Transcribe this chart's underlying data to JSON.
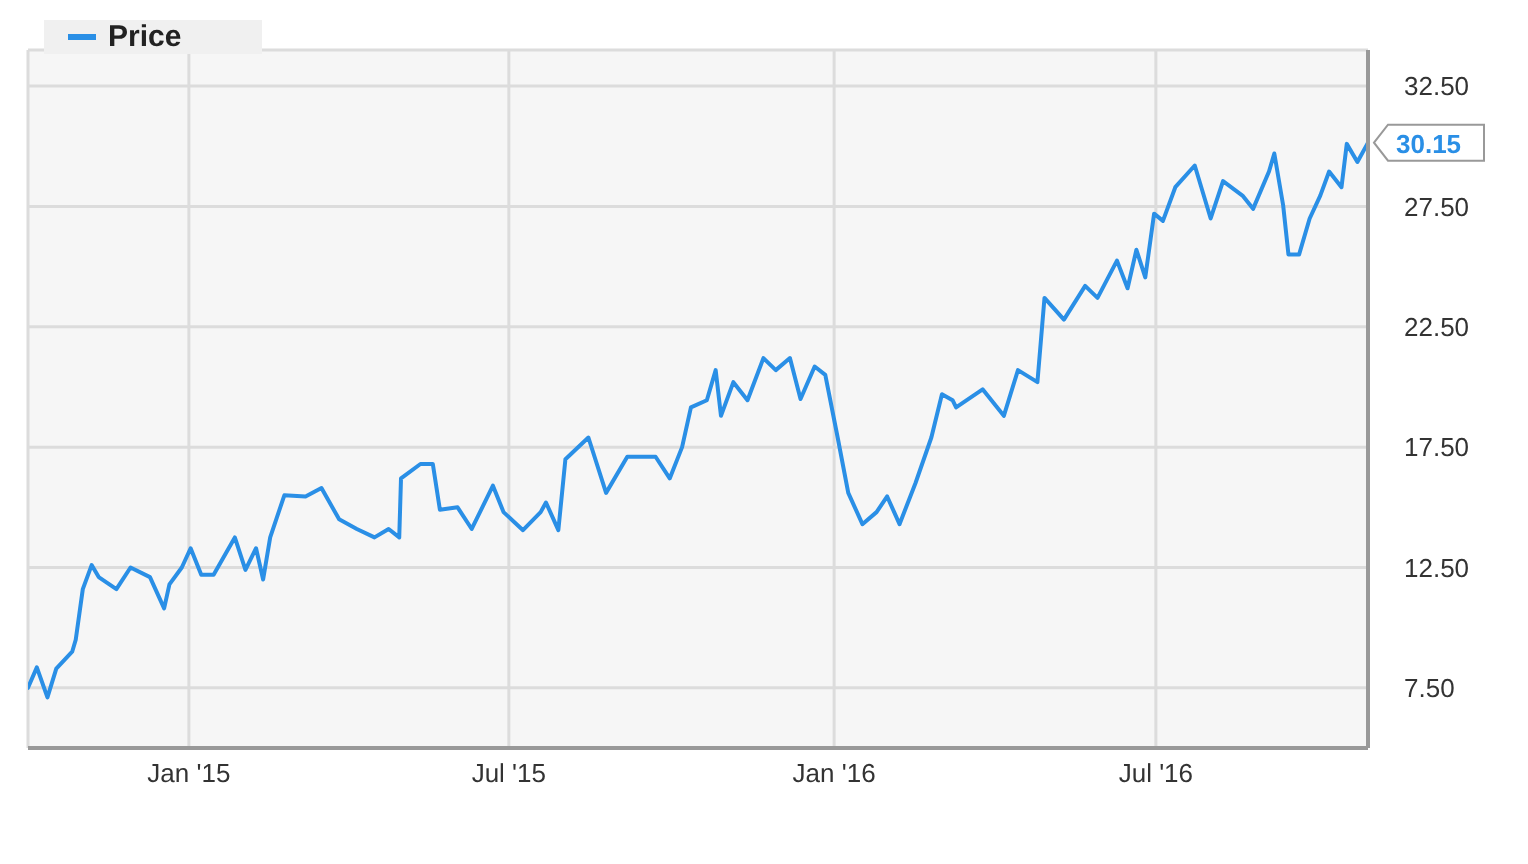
{
  "chart_data": {
    "type": "line",
    "xlim": [
      "2014-10-02",
      "2016-10-29"
    ],
    "xticks": [
      {
        "value": "2015-01-01",
        "label": "Jan '15"
      },
      {
        "value": "2015-07-01",
        "label": "Jul '15"
      },
      {
        "value": "2016-01-01",
        "label": "Jan '16"
      },
      {
        "value": "2016-07-01",
        "label": "Jul '16"
      }
    ],
    "ylim": [
      5,
      34
    ],
    "yticks": [
      {
        "value": 7.5,
        "label": "7.50"
      },
      {
        "value": 12.5,
        "label": "12.50"
      },
      {
        "value": 17.5,
        "label": "17.50"
      },
      {
        "value": 22.5,
        "label": "22.50"
      },
      {
        "value": 27.5,
        "label": "27.50"
      },
      {
        "value": 32.5,
        "label": "32.50"
      }
    ],
    "grid": true,
    "legend": "top left",
    "marker": "none",
    "line_style": "solid",
    "series": [
      {
        "name": "Price",
        "color": "#2a8fe6",
        "x": [
          "2014-10-02",
          "2014-10-07",
          "2014-10-13",
          "2014-10-18",
          "2014-10-27",
          "2014-10-29",
          "2014-11-02",
          "2014-11-07",
          "2014-11-11",
          "2014-11-21",
          "2014-11-29",
          "2014-12-10",
          "2014-12-18",
          "2014-12-21",
          "2014-12-28",
          "2015-01-02",
          "2015-01-08",
          "2015-01-15",
          "2015-01-27",
          "2015-02-02",
          "2015-02-08",
          "2015-02-12",
          "2015-02-16",
          "2015-02-24",
          "2015-03-08",
          "2015-03-17",
          "2015-03-27",
          "2015-04-06",
          "2015-04-16",
          "2015-04-24",
          "2015-04-30",
          "2015-05-01",
          "2015-05-12",
          "2015-05-19",
          "2015-05-23",
          "2015-06-02",
          "2015-06-10",
          "2015-06-22",
          "2015-06-28",
          "2015-07-09",
          "2015-07-19",
          "2015-07-22",
          "2015-07-29",
          "2015-08-02",
          "2015-08-15",
          "2015-08-25",
          "2015-09-06",
          "2015-09-22",
          "2015-09-30",
          "2015-10-07",
          "2015-10-12",
          "2015-10-21",
          "2015-10-26",
          "2015-10-29",
          "2015-11-05",
          "2015-11-13",
          "2015-11-22",
          "2015-11-29",
          "2015-12-07",
          "2015-12-13",
          "2015-12-21",
          "2015-12-27",
          "2016-01-03",
          "2016-01-09",
          "2016-01-17",
          "2016-01-25",
          "2016-01-31",
          "2016-02-07",
          "2016-02-16",
          "2016-02-25",
          "2016-03-02",
          "2016-03-08",
          "2016-03-10",
          "2016-03-25",
          "2016-04-06",
          "2016-04-14",
          "2016-04-25",
          "2016-04-29",
          "2016-05-10",
          "2016-05-22",
          "2016-05-29",
          "2016-06-09",
          "2016-06-15",
          "2016-06-20",
          "2016-06-25",
          "2016-06-30",
          "2016-07-05",
          "2016-07-12",
          "2016-07-23",
          "2016-08-01",
          "2016-08-08",
          "2016-08-19",
          "2016-08-25",
          "2016-09-03",
          "2016-09-06",
          "2016-09-11",
          "2016-09-14",
          "2016-09-20",
          "2016-09-26",
          "2016-10-02",
          "2016-10-07",
          "2016-10-14",
          "2016-10-17",
          "2016-10-23",
          "2016-10-29"
        ],
        "values": [
          7.5,
          8.35,
          7.1,
          8.3,
          9.0,
          9.5,
          11.6,
          12.6,
          12.1,
          11.6,
          12.5,
          12.1,
          10.8,
          11.8,
          12.5,
          13.3,
          12.2,
          12.2,
          13.75,
          12.4,
          13.3,
          12.0,
          13.75,
          15.5,
          15.45,
          15.8,
          14.5,
          14.1,
          13.75,
          14.1,
          13.75,
          16.2,
          16.8,
          16.8,
          14.9,
          15.0,
          14.1,
          15.9,
          14.8,
          14.05,
          14.8,
          15.2,
          14.05,
          17.0,
          17.9,
          15.6,
          17.1,
          17.1,
          16.2,
          17.5,
          19.15,
          19.45,
          20.7,
          18.8,
          20.2,
          19.45,
          21.2,
          20.7,
          21.2,
          19.5,
          20.85,
          20.5,
          17.9,
          15.6,
          14.3,
          14.8,
          15.45,
          14.3,
          16.0,
          17.9,
          19.7,
          19.45,
          19.15,
          19.9,
          18.8,
          20.7,
          20.2,
          23.7,
          22.8,
          24.2,
          23.7,
          25.25,
          24.1,
          25.7,
          24.55,
          27.2,
          26.9,
          28.3,
          29.2,
          27.0,
          28.55,
          27.95,
          27.4,
          28.95,
          29.7,
          27.55,
          25.5,
          25.5,
          27.0,
          27.95,
          28.95,
          28.3,
          30.1,
          29.35,
          30.15
        ],
        "value_labels": [
          null,
          null,
          null,
          null,
          null,
          null,
          null,
          null,
          null,
          null,
          null,
          null,
          null,
          null,
          null,
          null,
          null,
          null,
          null,
          null,
          null,
          null,
          null,
          null,
          null,
          null,
          null,
          null,
          null,
          null,
          null,
          null,
          null,
          null,
          null,
          null,
          null,
          null,
          null,
          null,
          null,
          null,
          null,
          null,
          null,
          null,
          null,
          null,
          null,
          null,
          null,
          null,
          null,
          null,
          null,
          null,
          null,
          null,
          null,
          null,
          null,
          null,
          null,
          null,
          null,
          null,
          null,
          null,
          null,
          null,
          null,
          null,
          null,
          null,
          null,
          null,
          null,
          null,
          null,
          null,
          null,
          null,
          null,
          null,
          null,
          null,
          null,
          null,
          null,
          null,
          null,
          null,
          null,
          null,
          null,
          null,
          null,
          null,
          null,
          null,
          null,
          null,
          null,
          null,
          "30.15"
        ]
      }
    ]
  }
}
